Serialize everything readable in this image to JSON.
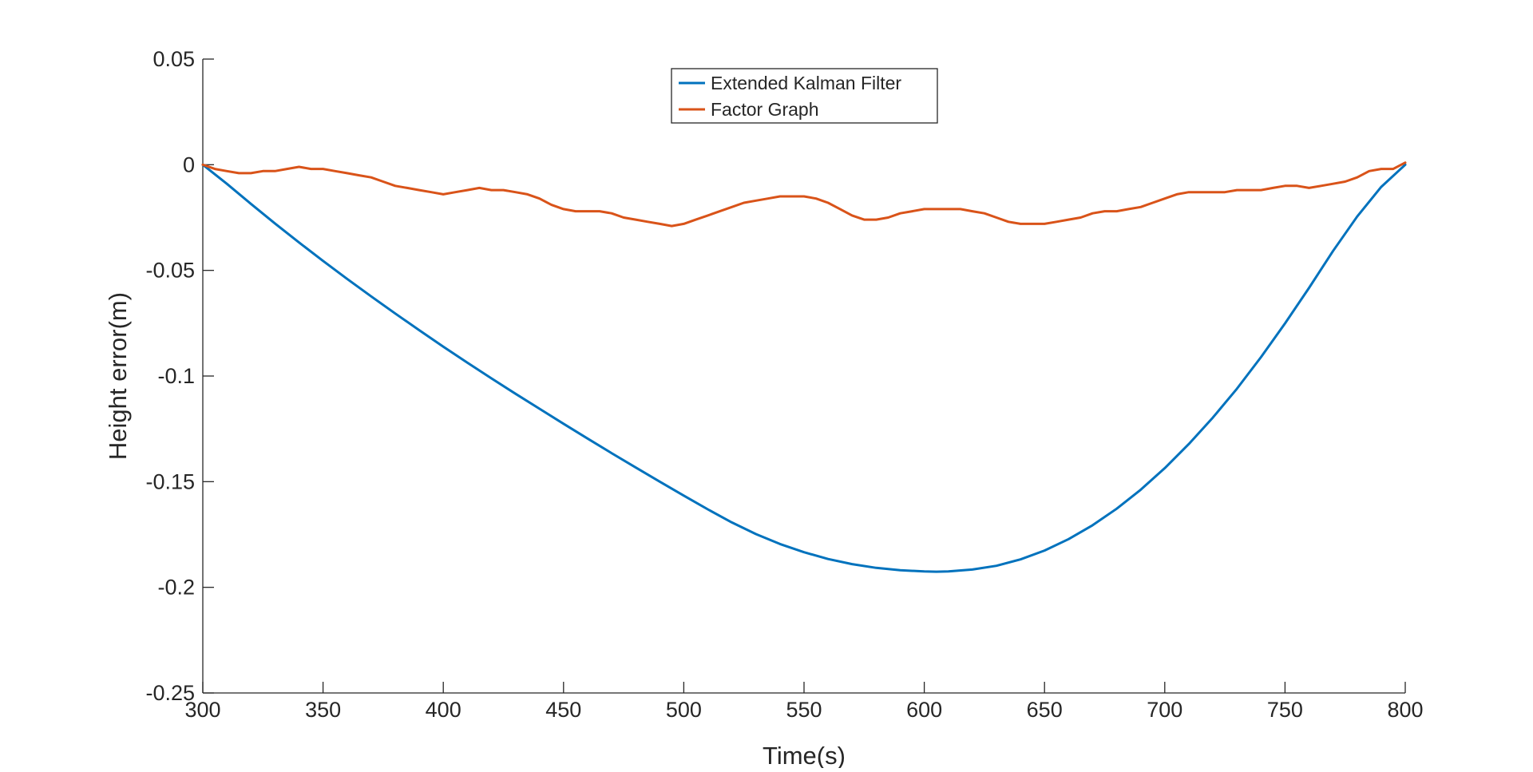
{
  "chart_data": {
    "type": "line",
    "title": "",
    "xlabel": "Time(s)",
    "ylabel": "Height error(m)",
    "xlim": [
      300,
      800
    ],
    "ylim": [
      -0.25,
      0.05
    ],
    "xticks": [
      300,
      350,
      400,
      450,
      500,
      550,
      600,
      650,
      700,
      750,
      800
    ],
    "yticks": [
      0.05,
      0,
      -0.05,
      -0.1,
      -0.15,
      -0.2,
      -0.25
    ],
    "xtick_labels": [
      "300",
      "350",
      "400",
      "450",
      "500",
      "550",
      "600",
      "650",
      "700",
      "750",
      "800"
    ],
    "ytick_labels": [
      "0.05",
      "0",
      "-0.05",
      "-0.1",
      "-0.15",
      "-0.2",
      "-0.25"
    ],
    "grid": false,
    "legend_position": "top-center",
    "series": [
      {
        "name": "Extended Kalman Filter",
        "color": "#0072BD",
        "x": [
          300,
          310,
          320,
          330,
          340,
          350,
          360,
          370,
          380,
          390,
          400,
          410,
          420,
          430,
          440,
          450,
          460,
          470,
          480,
          490,
          500,
          510,
          520,
          530,
          540,
          550,
          560,
          570,
          580,
          590,
          600,
          605,
          610,
          620,
          630,
          640,
          650,
          660,
          670,
          680,
          690,
          700,
          710,
          720,
          730,
          740,
          750,
          760,
          770,
          780,
          790,
          800
        ],
        "y": [
          0,
          -0.009,
          -0.0185,
          -0.0278,
          -0.0368,
          -0.0455,
          -0.054,
          -0.0623,
          -0.0704,
          -0.0783,
          -0.0861,
          -0.0937,
          -0.1011,
          -0.1084,
          -0.1155,
          -0.1226,
          -0.1296,
          -0.1365,
          -0.1433,
          -0.15,
          -0.1566,
          -0.1631,
          -0.1693,
          -0.1748,
          -0.1795,
          -0.1834,
          -0.1866,
          -0.189,
          -0.1908,
          -0.1919,
          -0.1925,
          -0.1926,
          -0.1925,
          -0.1916,
          -0.1898,
          -0.1868,
          -0.1826,
          -0.1772,
          -0.1706,
          -0.1628,
          -0.1538,
          -0.1436,
          -0.1322,
          -0.1197,
          -0.106,
          -0.0911,
          -0.0751,
          -0.0583,
          -0.0408,
          -0.0245,
          -0.0105,
          0
        ]
      },
      {
        "name": "Factor Graph",
        "color": "#D95319",
        "x": [
          300,
          305,
          310,
          315,
          320,
          325,
          330,
          335,
          340,
          345,
          350,
          355,
          360,
          365,
          370,
          375,
          380,
          385,
          390,
          395,
          400,
          405,
          410,
          415,
          420,
          425,
          430,
          435,
          440,
          445,
          450,
          455,
          460,
          465,
          470,
          475,
          480,
          485,
          490,
          495,
          500,
          505,
          510,
          515,
          520,
          525,
          530,
          535,
          540,
          545,
          550,
          555,
          560,
          565,
          570,
          575,
          580,
          585,
          590,
          595,
          600,
          605,
          610,
          615,
          620,
          625,
          630,
          635,
          640,
          645,
          650,
          655,
          660,
          665,
          670,
          675,
          680,
          685,
          690,
          695,
          700,
          705,
          710,
          715,
          720,
          725,
          730,
          735,
          740,
          745,
          750,
          755,
          760,
          765,
          770,
          775,
          780,
          785,
          790,
          795,
          800
        ],
        "y": [
          0,
          -0.002,
          -0.003,
          -0.004,
          -0.004,
          -0.003,
          -0.003,
          -0.002,
          -0.001,
          -0.002,
          -0.002,
          -0.003,
          -0.004,
          -0.005,
          -0.006,
          -0.008,
          -0.01,
          -0.011,
          -0.012,
          -0.013,
          -0.014,
          -0.013,
          -0.012,
          -0.011,
          -0.012,
          -0.012,
          -0.013,
          -0.014,
          -0.016,
          -0.019,
          -0.021,
          -0.022,
          -0.022,
          -0.022,
          -0.023,
          -0.025,
          -0.026,
          -0.027,
          -0.028,
          -0.029,
          -0.028,
          -0.026,
          -0.024,
          -0.022,
          -0.02,
          -0.018,
          -0.017,
          -0.016,
          -0.015,
          -0.015,
          -0.015,
          -0.016,
          -0.018,
          -0.021,
          -0.024,
          -0.026,
          -0.026,
          -0.025,
          -0.023,
          -0.022,
          -0.021,
          -0.021,
          -0.021,
          -0.021,
          -0.022,
          -0.023,
          -0.025,
          -0.027,
          -0.028,
          -0.028,
          -0.028,
          -0.027,
          -0.026,
          -0.025,
          -0.023,
          -0.022,
          -0.022,
          -0.021,
          -0.02,
          -0.018,
          -0.016,
          -0.014,
          -0.013,
          -0.013,
          -0.013,
          -0.013,
          -0.012,
          -0.012,
          -0.012,
          -0.011,
          -0.01,
          -0.01,
          -0.011,
          -0.01,
          -0.009,
          -0.008,
          -0.006,
          -0.003,
          -0.002,
          -0.002,
          0.001
        ]
      }
    ]
  }
}
